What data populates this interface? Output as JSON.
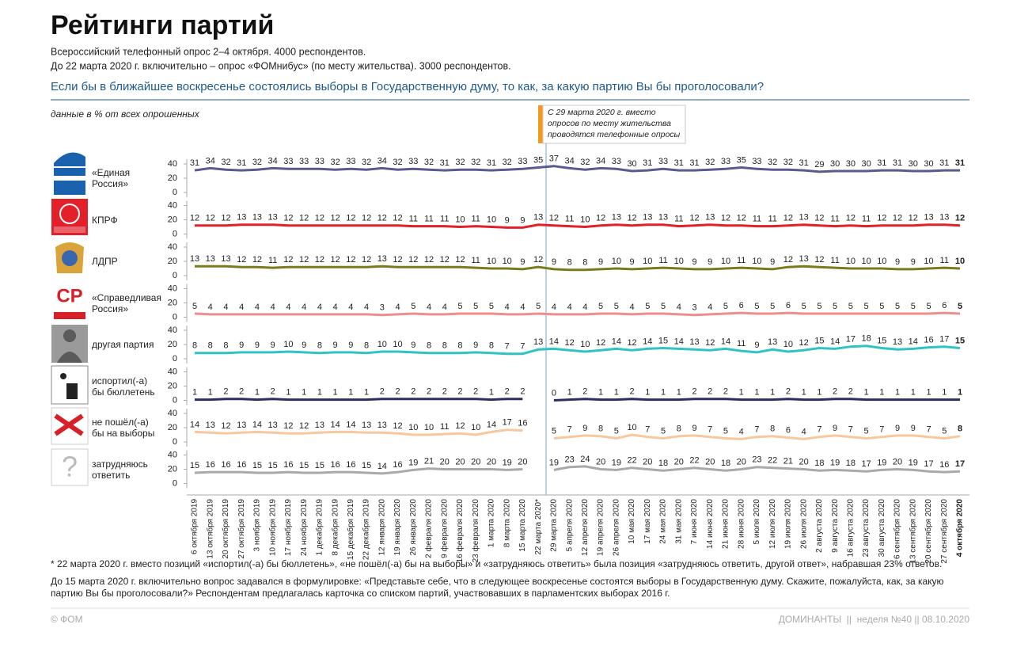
{
  "chart_data": {
    "type": "line",
    "title": "Рейтинги партий",
    "subtitle": [
      "Всероссийский телефонный опрос 2–4 октября. 4000 респондентов.",
      "До 22 марта 2020 г. включительно – опрос «ФОМнибус» (по месту жительства). 3000 респондентов."
    ],
    "question": "Если бы в ближайшее воскресенье состоялись выборы в Государственную думу, то как, за какую партию Вы бы проголосовали?",
    "note": "данные в % от всех опрошенных",
    "annotation": "С 29 марта 2020 г. вместо опросов по месту жительства проводятся телефонные опросы",
    "x": [
      "6 октября 2019",
      "13 октября 2019",
      "20 октября 2019",
      "27 октября 2019",
      "3 ноября 2019",
      "10 ноября 2019",
      "17 ноября 2019",
      "24 ноября 2019",
      "1 декабря 2019",
      "8 декабря 2019",
      "15 декабря 2019",
      "22 декабря 2019",
      "12 января 2020",
      "19 января 2020",
      "26 января 2020",
      "2 февраля 2020",
      "9 февраля 2020",
      "16 февраля 2020",
      "23 февраля 2020",
      "1 марта 2020",
      "8 марта 2020",
      "15 марта 2020",
      "22 марта 2020*",
      "29 марта 2020",
      "5 апреля 2020",
      "12 апреля 2020",
      "19 апреля 2020",
      "26 апреля 2020",
      "10 мая 2020",
      "17 мая 2020",
      "24 мая 2020",
      "31 мая 2020",
      "7 июня 2020",
      "14 июня 2020",
      "21 июня 2020",
      "28 июня 2020",
      "5 июля 2020",
      "12 июля 2020",
      "19 июля 2020",
      "26 июля 2020",
      "2 августа 2020",
      "9 августа 2020",
      "16 августа 2020",
      "23 августа 2020",
      "30 августа 2020",
      "6 сентября 2020",
      "13 сентября 2020",
      "20 сентября 2020",
      "27 сентября 2020",
      "4 октября 2020"
    ],
    "ylim": [
      0,
      40
    ],
    "yticks": [
      0,
      20,
      40
    ],
    "series": [
      {
        "name": "«Единая Россия»",
        "color": "#5b5a8e",
        "values": [
          31,
          34,
          32,
          31,
          32,
          34,
          33,
          33,
          33,
          32,
          33,
          32,
          34,
          32,
          33,
          32,
          31,
          32,
          32,
          31,
          32,
          33,
          35,
          37,
          34,
          32,
          34,
          33,
          30,
          31,
          33,
          31,
          31,
          32,
          33,
          35,
          33,
          32,
          32,
          31,
          29,
          30,
          30,
          30,
          31,
          31,
          30,
          30,
          31,
          31
        ]
      },
      {
        "name": "КПРФ",
        "color": "#e3202a",
        "values": [
          12,
          12,
          12,
          13,
          13,
          13,
          12,
          12,
          12,
          12,
          12,
          12,
          12,
          12,
          11,
          11,
          11,
          10,
          11,
          10,
          9,
          9,
          13,
          12,
          11,
          10,
          12,
          13,
          12,
          13,
          13,
          11,
          12,
          13,
          12,
          12,
          11,
          11,
          12,
          13,
          12,
          11,
          12,
          11,
          12,
          12,
          12,
          13,
          13,
          12
        ]
      },
      {
        "name": "ЛДПР",
        "color": "#7b7a1c",
        "values": [
          13,
          13,
          13,
          12,
          12,
          11,
          12,
          12,
          12,
          12,
          12,
          12,
          13,
          12,
          12,
          12,
          12,
          12,
          11,
          10,
          10,
          9,
          12,
          9,
          8,
          8,
          9,
          10,
          9,
          10,
          11,
          10,
          9,
          9,
          10,
          11,
          10,
          9,
          12,
          13,
          12,
          11,
          10,
          10,
          10,
          9,
          9,
          10,
          11,
          10
        ]
      },
      {
        "name": "«Справедливая Россия»",
        "color": "#f08c8c",
        "values": [
          5,
          4,
          4,
          4,
          4,
          4,
          4,
          4,
          4,
          4,
          4,
          4,
          3,
          4,
          5,
          4,
          4,
          5,
          5,
          5,
          4,
          4,
          5,
          4,
          4,
          4,
          5,
          5,
          4,
          5,
          5,
          4,
          3,
          4,
          5,
          6,
          5,
          5,
          6,
          5,
          5,
          5,
          5,
          5,
          5,
          5,
          5,
          5,
          6,
          5
        ]
      },
      {
        "name": "другая партия",
        "color": "#2fc3c6",
        "values": [
          8,
          8,
          8,
          9,
          9,
          9,
          10,
          9,
          8,
          9,
          9,
          8,
          10,
          10,
          9,
          8,
          8,
          8,
          9,
          8,
          7,
          7,
          13,
          14,
          12,
          10,
          12,
          14,
          12,
          14,
          15,
          14,
          13,
          12,
          14,
          11,
          9,
          13,
          10,
          12,
          15,
          14,
          17,
          18,
          15,
          13,
          14,
          16,
          17,
          15
        ]
      },
      {
        "name": "испортил(-а) бы бюллетень",
        "color": "#2b2f60",
        "values": [
          1,
          1,
          2,
          2,
          1,
          2,
          1,
          1,
          1,
          1,
          1,
          1,
          2,
          2,
          2,
          2,
          2,
          2,
          2,
          1,
          2,
          2,
          null,
          0,
          1,
          2,
          1,
          1,
          2,
          1,
          1,
          1,
          2,
          2,
          2,
          1,
          1,
          1,
          2,
          1,
          1,
          2,
          2,
          1,
          1,
          1,
          1,
          1,
          1,
          1
        ]
      },
      {
        "name": "не пошёл(-а) бы на выборы",
        "color": "#f7c89e",
        "values": [
          14,
          13,
          12,
          13,
          14,
          13,
          12,
          12,
          13,
          14,
          14,
          13,
          13,
          12,
          10,
          10,
          11,
          12,
          10,
          14,
          17,
          16,
          null,
          5,
          7,
          9,
          8,
          5,
          10,
          7,
          5,
          8,
          9,
          7,
          5,
          4,
          7,
          8,
          6,
          4,
          7,
          9,
          7,
          5,
          7,
          9,
          9,
          7,
          5,
          8
        ]
      },
      {
        "name": "затрудняюсь ответить",
        "color": "#a9a9a9",
        "values": [
          15,
          16,
          16,
          16,
          15,
          15,
          16,
          15,
          15,
          16,
          16,
          15,
          14,
          16,
          19,
          21,
          20,
          20,
          20,
          20,
          19,
          20,
          null,
          19,
          23,
          24,
          20,
          19,
          22,
          20,
          18,
          20,
          22,
          20,
          18,
          20,
          23,
          22,
          21,
          20,
          18,
          19,
          18,
          17,
          19,
          20,
          19,
          17,
          16,
          17
        ]
      }
    ],
    "footnotes": [
      "*  22 марта 2020 г. вместо позиций «испортил(-а) бы бюллетень», «не пошёл(-а) бы на выборы» и «затрудняюсь ответить» была позиция «затрудняюсь ответить, другой ответ», набравшая 23% ответов.",
      "До 15 марта 2020 г. включительно вопрос задавался в формулировке: «Представьте себе, что в следующее воскресенье состоятся выборы в Государственную думу. Скажите, пожалуйста, как, за какую партию Вы бы проголосовали?» Респондентам предлагалась карточка со списком партий, участвовавших в парламентских выборах 2016 г."
    ],
    "footer_left": "© ФОМ",
    "footer_right": "ДОМИНАНТЫ  ||  неделя №40 || 08.10.2020"
  }
}
